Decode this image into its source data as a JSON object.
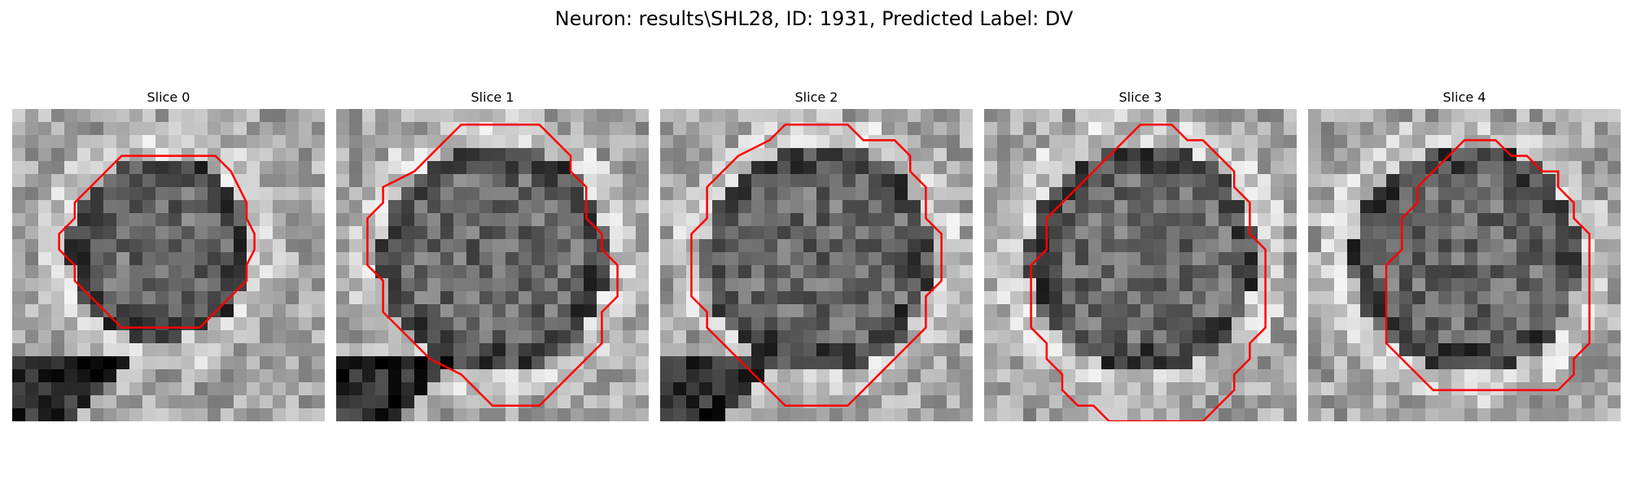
{
  "figure": {
    "title": "Neuron: results\\SHL28, ID: 1931, Predicted Label: DV"
  },
  "colors": {
    "contour": "#ff0000",
    "background": "#ffffff"
  },
  "panels": [
    {
      "label": "Slice 0",
      "image_name": "slice-0-image",
      "contour": [
        [
          10,
          3
        ],
        [
          13,
          3
        ],
        [
          14,
          4
        ],
        [
          15,
          6
        ],
        [
          15,
          7
        ],
        [
          15.5,
          8
        ],
        [
          15.5,
          9
        ],
        [
          15,
          10
        ],
        [
          15,
          11
        ],
        [
          14,
          12
        ],
        [
          13,
          13
        ],
        [
          12,
          14
        ],
        [
          7,
          14
        ],
        [
          6,
          13
        ],
        [
          5,
          12
        ],
        [
          4,
          11
        ],
        [
          4,
          10
        ],
        [
          3,
          9
        ],
        [
          3,
          8
        ],
        [
          4,
          7
        ],
        [
          4,
          6
        ],
        [
          5,
          5
        ],
        [
          6,
          4
        ],
        [
          7,
          3
        ]
      ]
    },
    {
      "label": "Slice 1",
      "image_name": "slice-1-image",
      "contour": [
        [
          10,
          1
        ],
        [
          13,
          1
        ],
        [
          14,
          2
        ],
        [
          15,
          3
        ],
        [
          15,
          4
        ],
        [
          16,
          5
        ],
        [
          16,
          7
        ],
        [
          17,
          8
        ],
        [
          17,
          9
        ],
        [
          18,
          10
        ],
        [
          18,
          12
        ],
        [
          17,
          13
        ],
        [
          17,
          15
        ],
        [
          16,
          16
        ],
        [
          15,
          17
        ],
        [
          14,
          18
        ],
        [
          13,
          19
        ],
        [
          10,
          19
        ],
        [
          9,
          18
        ],
        [
          8,
          17
        ],
        [
          6,
          16
        ],
        [
          5,
          15
        ],
        [
          4,
          14
        ],
        [
          3,
          13
        ],
        [
          3,
          11
        ],
        [
          2,
          10
        ],
        [
          2,
          7
        ],
        [
          3,
          6
        ],
        [
          3,
          5
        ],
        [
          5,
          4
        ],
        [
          6,
          3
        ],
        [
          7,
          2
        ],
        [
          8,
          1
        ]
      ]
    },
    {
      "label": "Slice 2",
      "image_name": "slice-2-image",
      "contour": [
        [
          8,
          1
        ],
        [
          12,
          1
        ],
        [
          13,
          2
        ],
        [
          15,
          2
        ],
        [
          16,
          3
        ],
        [
          16,
          4
        ],
        [
          17,
          5
        ],
        [
          17,
          7
        ],
        [
          18,
          8
        ],
        [
          18,
          11
        ],
        [
          17,
          12
        ],
        [
          17,
          14
        ],
        [
          16,
          15
        ],
        [
          15,
          16
        ],
        [
          14,
          17
        ],
        [
          13,
          18
        ],
        [
          12,
          19
        ],
        [
          8,
          19
        ],
        [
          7,
          18
        ],
        [
          6,
          17
        ],
        [
          5,
          16
        ],
        [
          4,
          15
        ],
        [
          3,
          14
        ],
        [
          3,
          13
        ],
        [
          2,
          12
        ],
        [
          2,
          8
        ],
        [
          3,
          7
        ],
        [
          3,
          5
        ],
        [
          4,
          4
        ],
        [
          5,
          3
        ],
        [
          7,
          2
        ]
      ]
    },
    {
      "label": "Slice 3",
      "image_name": "slice-3-image",
      "contour": [
        [
          10,
          1
        ],
        [
          12,
          1
        ],
        [
          13,
          2
        ],
        [
          14,
          2
        ],
        [
          15,
          3
        ],
        [
          16,
          4
        ],
        [
          16,
          5
        ],
        [
          17,
          6
        ],
        [
          17,
          8
        ],
        [
          18,
          9
        ],
        [
          18,
          14
        ],
        [
          17,
          15
        ],
        [
          17,
          16
        ],
        [
          16,
          17
        ],
        [
          16,
          18
        ],
        [
          15,
          19
        ],
        [
          14,
          20
        ],
        [
          8,
          20
        ],
        [
          7,
          19
        ],
        [
          6,
          19
        ],
        [
          5,
          18
        ],
        [
          5,
          17
        ],
        [
          4,
          16
        ],
        [
          4,
          15
        ],
        [
          3,
          14
        ],
        [
          3,
          10
        ],
        [
          4,
          9
        ],
        [
          4,
          7
        ],
        [
          5,
          6
        ],
        [
          6,
          5
        ],
        [
          7,
          4
        ],
        [
          8,
          3
        ],
        [
          9,
          2
        ]
      ]
    },
    {
      "label": "Slice 4",
      "image_name": "slice-4-image",
      "contour": [
        [
          10,
          2
        ],
        [
          12,
          2
        ],
        [
          13,
          3
        ],
        [
          14,
          3
        ],
        [
          15,
          4
        ],
        [
          16,
          4
        ],
        [
          16,
          5
        ],
        [
          17,
          6
        ],
        [
          17,
          7
        ],
        [
          18,
          8
        ],
        [
          18,
          15
        ],
        [
          17,
          16
        ],
        [
          17,
          17
        ],
        [
          16,
          18
        ],
        [
          14,
          18
        ],
        [
          13,
          18
        ],
        [
          12,
          18
        ],
        [
          8,
          18
        ],
        [
          7,
          17
        ],
        [
          6,
          16
        ],
        [
          5,
          15
        ],
        [
          5,
          10
        ],
        [
          6,
          9
        ],
        [
          6,
          7
        ],
        [
          7,
          6
        ],
        [
          7,
          5
        ],
        [
          8,
          4
        ],
        [
          9,
          3
        ]
      ]
    }
  ]
}
